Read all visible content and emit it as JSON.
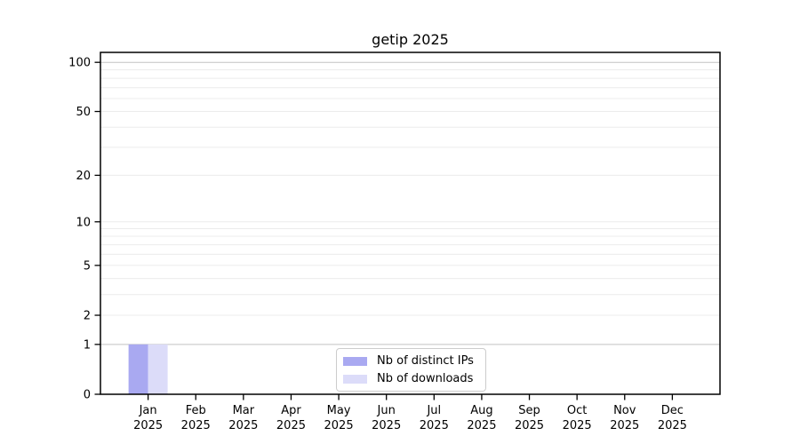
{
  "window": {
    "background": "#ffffff"
  },
  "chart_data": {
    "type": "bar",
    "title": "getip 2025",
    "categories": [
      "Jan",
      "Feb",
      "Mar",
      "Apr",
      "May",
      "Jun",
      "Jul",
      "Aug",
      "Sep",
      "Oct",
      "Nov",
      "Dec"
    ],
    "x_tick_year": "2025",
    "series": [
      {
        "name": "Nb of distinct IPs",
        "color": "#a9a9f1",
        "values": [
          1,
          0,
          0,
          0,
          0,
          0,
          0,
          0,
          0,
          0,
          0,
          0
        ]
      },
      {
        "name": "Nb of downloads",
        "color": "#dcdcf9",
        "values": [
          1,
          0,
          0,
          0,
          0,
          0,
          0,
          0,
          0,
          0,
          0,
          0
        ]
      }
    ],
    "y_scale": "log10(1+v)",
    "y_ticks": [
      0,
      1,
      2,
      5,
      10,
      20,
      50,
      100
    ],
    "y_gridline_values": [
      1,
      2,
      3,
      4,
      5,
      6,
      7,
      8,
      9,
      10,
      20,
      30,
      40,
      50,
      60,
      70,
      80,
      90,
      100
    ],
    "ylim": [
      0,
      113
    ],
    "grid": {
      "minor_color": "#ececec",
      "major_color": "#c3c3c3",
      "major_lines_at": [
        1,
        100
      ]
    },
    "axis_color": "#000000",
    "legend": {
      "position": "lower-center",
      "border_color": "#cccccc"
    }
  }
}
